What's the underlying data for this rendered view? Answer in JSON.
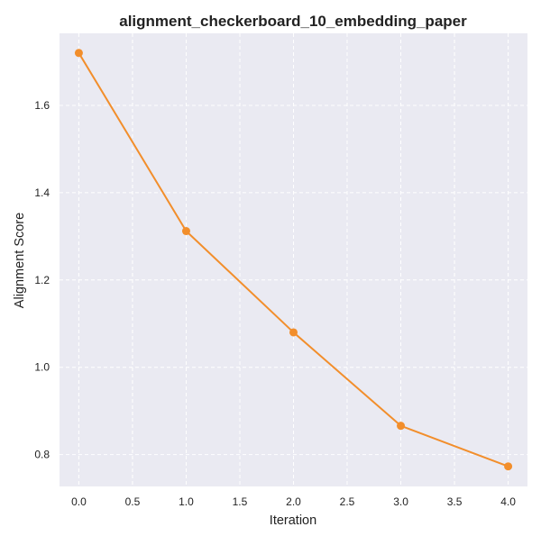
{
  "chart_data": {
    "type": "line",
    "title": "alignment_checkerboard_10_embedding_paper",
    "xlabel": "Iteration",
    "ylabel": "Alignment Score",
    "xlim": [
      -0.18,
      4.18
    ],
    "ylim": [
      0.727,
      1.765
    ],
    "xticks": [
      0.0,
      0.5,
      1.0,
      1.5,
      2.0,
      2.5,
      3.0,
      3.5,
      4.0
    ],
    "xtick_labels": [
      "0.0",
      "0.5",
      "1.0",
      "1.5",
      "2.0",
      "2.5",
      "3.0",
      "3.5",
      "4.0"
    ],
    "yticks": [
      0.8,
      1.0,
      1.2,
      1.4,
      1.6
    ],
    "ytick_labels": [
      "0.8",
      "1.0",
      "1.2",
      "1.4",
      "1.6"
    ],
    "grid": true,
    "series": [
      {
        "x": [
          0,
          1,
          2,
          3,
          4
        ],
        "y": [
          1.72,
          1.312,
          1.08,
          0.866,
          0.773
        ],
        "color": "#f28e2b",
        "marker": "circle"
      }
    ]
  },
  "colors": {
    "plot_background": "#eaeaf2",
    "grid": "#ffffff",
    "text": "#222222"
  }
}
